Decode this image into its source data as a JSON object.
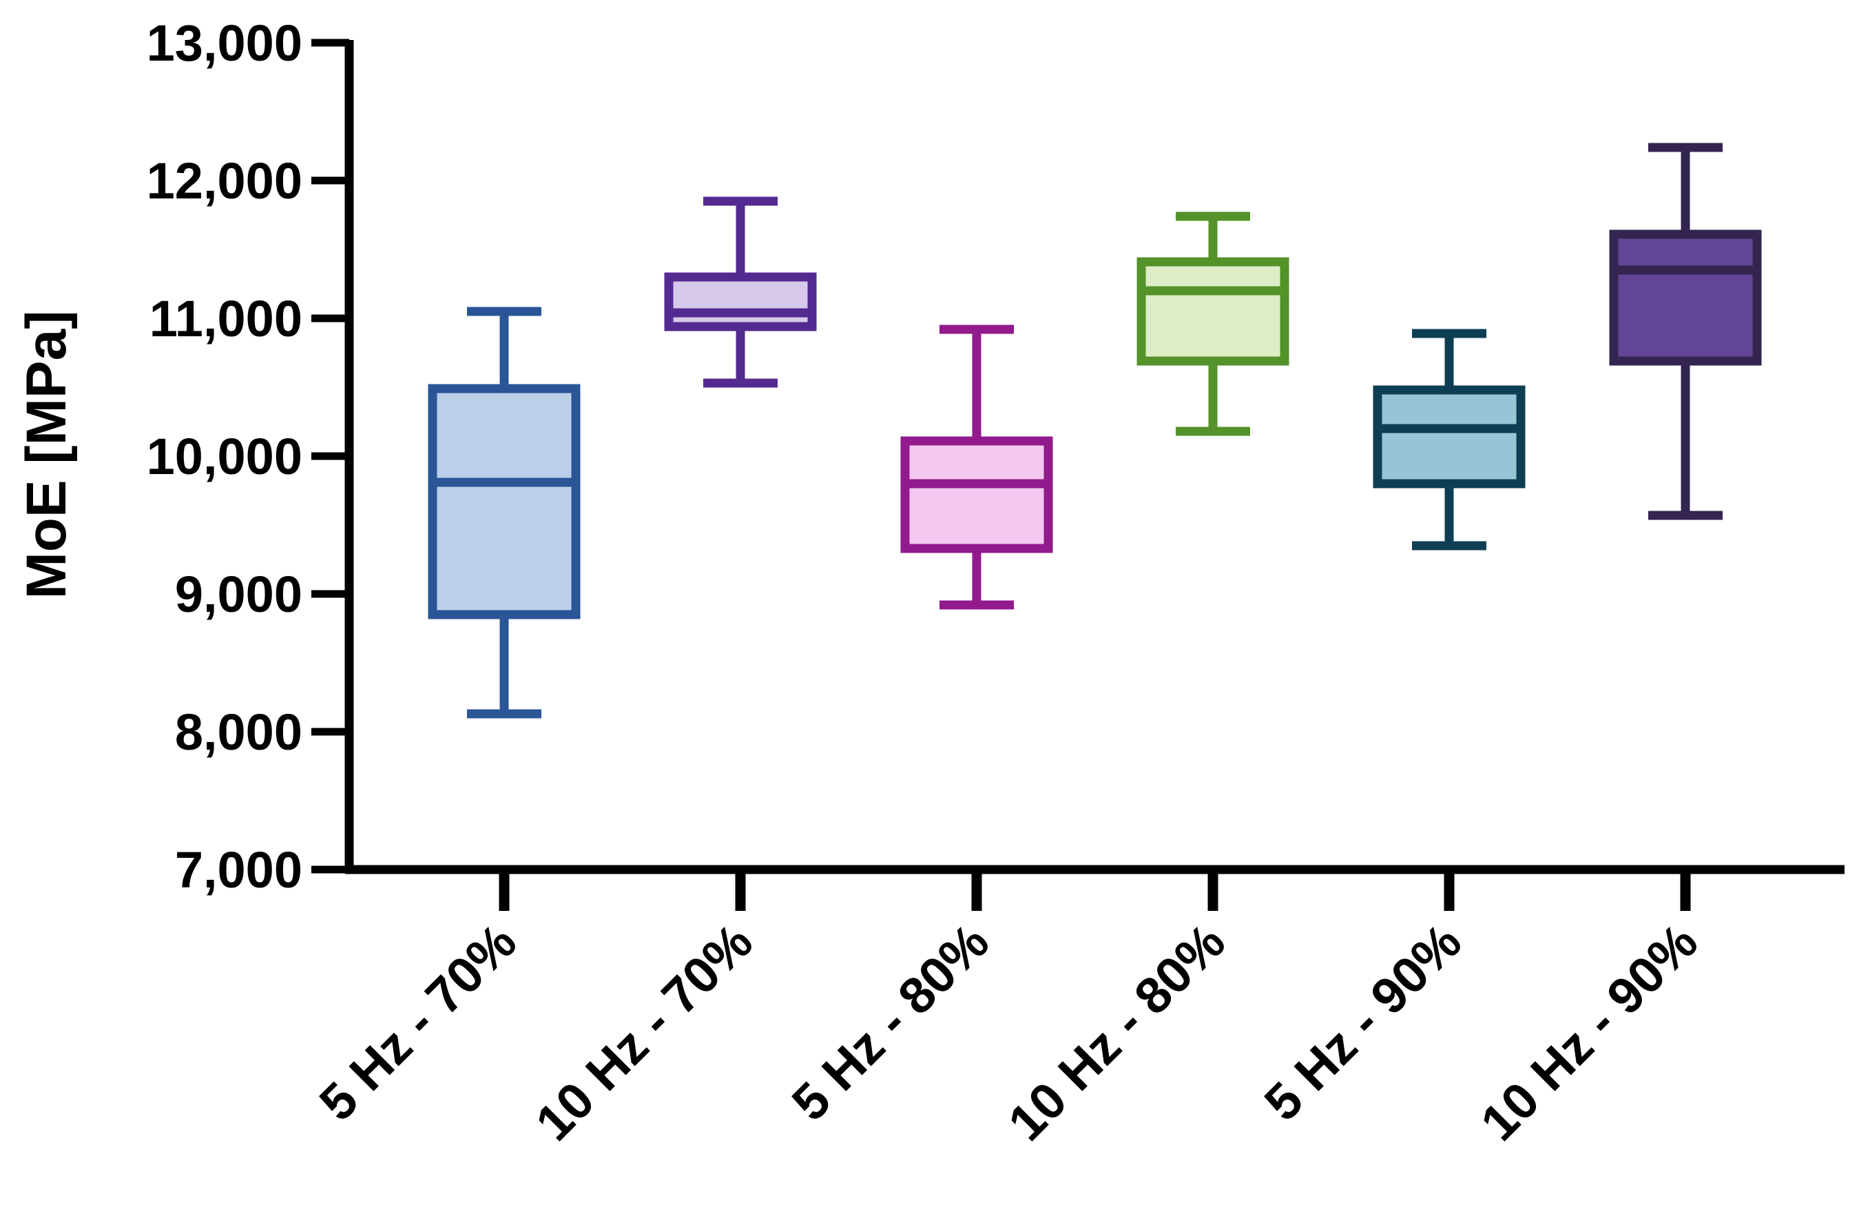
{
  "chart_data": {
    "type": "box",
    "title": "",
    "xlabel": "",
    "ylabel": "MoE  [MPa]",
    "ylim": [
      7000,
      13000
    ],
    "yticks": [
      7000,
      8000,
      9000,
      10000,
      11000,
      12000,
      13000
    ],
    "ytick_labels": [
      "7,000",
      "8,000",
      "9,000",
      "10,000",
      "11,000",
      "12,000",
      "13,000"
    ],
    "grid": false,
    "legend": "none",
    "categories": [
      "5 Hz - 70%",
      "10 Hz - 70%",
      "5 Hz - 80%",
      "10 Hz - 80%",
      "5 Hz - 90%",
      "10 Hz - 90%"
    ],
    "series": [
      {
        "name": "5 Hz - 70%",
        "min": 8130,
        "q1": 8850,
        "median": 9810,
        "q3": 10490,
        "max": 11050,
        "stroke": "#2a5597",
        "fill": "#bccfe9"
      },
      {
        "name": "10 Hz - 70%",
        "min": 10530,
        "q1": 10940,
        "median": 11040,
        "q3": 11300,
        "max": 11850,
        "stroke": "#542a90",
        "fill": "#d6c9ea"
      },
      {
        "name": "5 Hz - 80%",
        "min": 8920,
        "q1": 9330,
        "median": 9800,
        "q3": 10110,
        "max": 10920,
        "stroke": "#921a8d",
        "fill": "#f3c8f0"
      },
      {
        "name": "10 Hz - 80%",
        "min": 10180,
        "q1": 10690,
        "median": 11200,
        "q3": 11410,
        "max": 11740,
        "stroke": "#54922a",
        "fill": "#ddeec6"
      },
      {
        "name": "5 Hz - 90%",
        "min": 9350,
        "q1": 9800,
        "median": 10200,
        "q3": 10480,
        "max": 10890,
        "stroke": "#0e3e54",
        "fill": "#98c5d6"
      },
      {
        "name": "10 Hz - 90%",
        "min": 9570,
        "q1": 10690,
        "median": 11350,
        "q3": 11610,
        "max": 12240,
        "stroke": "#33254f",
        "fill": "#634596"
      }
    ]
  }
}
